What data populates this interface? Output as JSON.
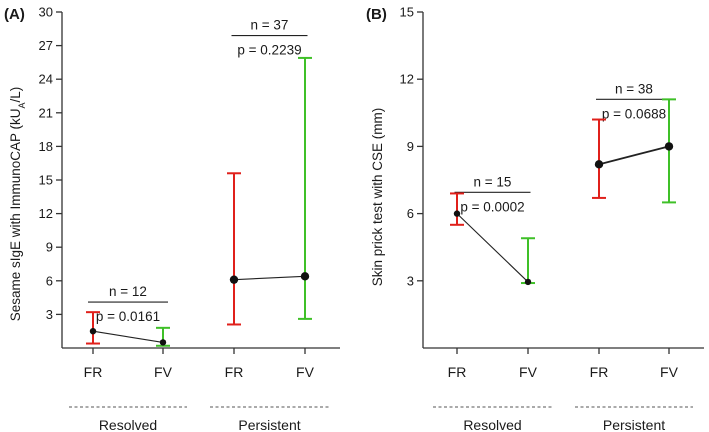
{
  "colors": {
    "FR": "#e0201b",
    "FV": "#3fc028",
    "point": "#111111",
    "axis": "#333333"
  },
  "chart_data": [
    {
      "type": "scatter",
      "panel_label": "(A)",
      "ylabel_main": "Sesame sIgE with ImmunoCAP (kU",
      "ylabel_sub": "A",
      "ylabel_end": "/L)",
      "ylim": [
        0,
        30
      ],
      "yticks": [
        3,
        6,
        9,
        12,
        15,
        18,
        21,
        24,
        27,
        30
      ],
      "categories": [
        "FR",
        "FV",
        "FR",
        "FV"
      ],
      "groups": [
        {
          "name": "Resolved",
          "indices": [
            0,
            1
          ]
        },
        {
          "name": "Persistent",
          "indices": [
            2,
            3
          ]
        }
      ],
      "points": [
        {
          "category": "FR",
          "group": "Resolved",
          "value": 1.5,
          "lower": 0.4,
          "upper": 3.2
        },
        {
          "category": "FV",
          "group": "Resolved",
          "value": 0.5,
          "lower": 0.2,
          "upper": 1.8
        },
        {
          "category": "FR",
          "group": "Persistent",
          "value": 6.1,
          "lower": 2.1,
          "upper": 15.6
        },
        {
          "category": "FV",
          "group": "Persistent",
          "value": 6.4,
          "lower": 2.6,
          "upper": 25.9
        }
      ],
      "annotations": [
        {
          "group": "Resolved",
          "n_text": "n = 12",
          "p_text": "p = 0.0161",
          "line_value": 4.1
        },
        {
          "group": "Persistent",
          "n_text": "n = 37",
          "p_text": "p = 0.2239",
          "line_value": 27.9
        }
      ]
    },
    {
      "type": "scatter",
      "panel_label": "(B)",
      "ylabel_main": "Skin prick test with CSE (mm)",
      "ylabel_sub": "",
      "ylabel_end": "",
      "ylim": [
        0,
        15
      ],
      "yticks": [
        3,
        6,
        9,
        12,
        15
      ],
      "categories": [
        "FR",
        "FV",
        "FR",
        "FV"
      ],
      "groups": [
        {
          "name": "Resolved",
          "indices": [
            0,
            1
          ]
        },
        {
          "name": "Persistent",
          "indices": [
            2,
            3
          ]
        }
      ],
      "points": [
        {
          "category": "FR",
          "group": "Resolved",
          "value": 6.0,
          "lower": 5.5,
          "upper": 6.9
        },
        {
          "category": "FV",
          "group": "Resolved",
          "value": 2.95,
          "lower": 2.9,
          "upper": 4.9
        },
        {
          "category": "FR",
          "group": "Persistent",
          "value": 8.2,
          "lower": 6.7,
          "upper": 10.2
        },
        {
          "category": "FV",
          "group": "Persistent",
          "value": 9.0,
          "lower": 6.5,
          "upper": 11.1
        }
      ],
      "annotations": [
        {
          "group": "Resolved",
          "n_text": "n = 15",
          "p_text": "p = 0.0002",
          "line_value": 6.95
        },
        {
          "group": "Persistent",
          "n_text": "n = 38",
          "p_text": "p = 0.0688",
          "line_value": 11.1
        }
      ]
    }
  ]
}
